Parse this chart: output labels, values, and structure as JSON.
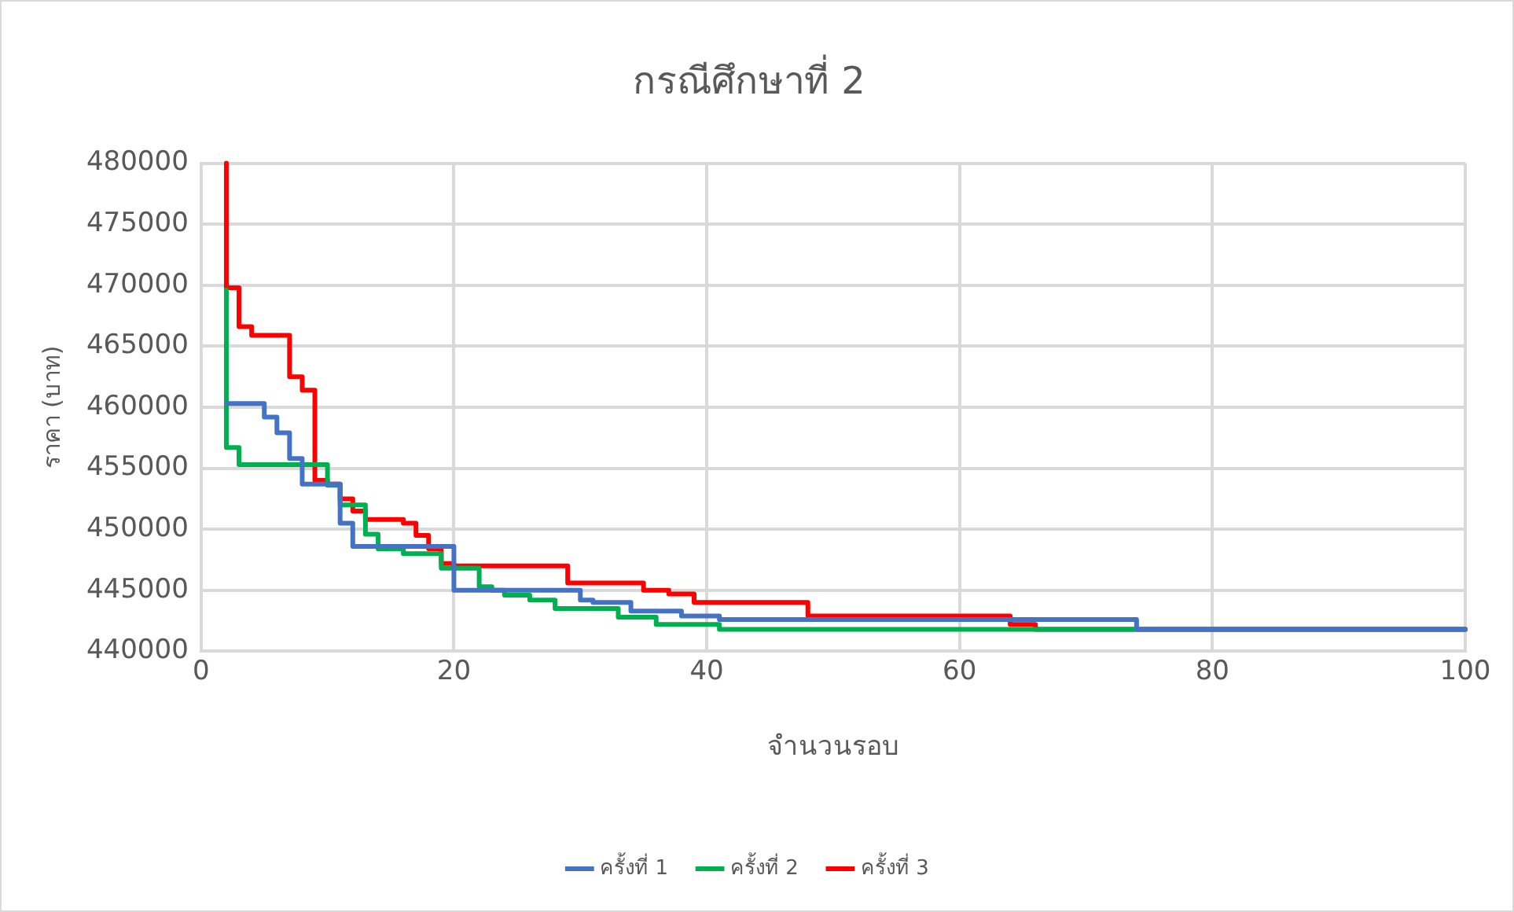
{
  "chart_data": {
    "type": "step",
    "title": "กรณีศึกษาที่ 2",
    "xlabel": "จำนวนรอบ",
    "ylabel": "ราคา (บาท)",
    "xlim": [
      0,
      100
    ],
    "xticks": [
      0,
      20,
      40,
      60,
      80,
      100
    ],
    "ylim": [
      440000,
      480000
    ],
    "yticks": [
      440000,
      445000,
      450000,
      455000,
      460000,
      465000,
      470000,
      475000,
      480000
    ],
    "grid": true,
    "legend": "bottom",
    "marker": "none",
    "line_style": "solid",
    "series": [
      {
        "name": "ครั้งที่ 1",
        "color": "#4472c4",
        "x": [
          2,
          5,
          6,
          7,
          8,
          11,
          12,
          20,
          30,
          31,
          34,
          38,
          41,
          74,
          100
        ],
        "values": [
          460300,
          459200,
          457900,
          455800,
          453700,
          450500,
          448600,
          445000,
          444200,
          444000,
          443300,
          442900,
          442600,
          441800,
          441800
        ]
      },
      {
        "name": "ครั้งที่ 2",
        "color": "#00b050",
        "x": [
          2,
          2,
          3,
          10,
          11,
          13,
          14,
          16,
          19,
          22,
          23,
          24,
          26,
          28,
          33,
          36,
          41,
          100
        ],
        "values": [
          469600,
          456700,
          455300,
          453600,
          452000,
          449600,
          448400,
          448000,
          446800,
          445300,
          445000,
          444600,
          444200,
          443500,
          442800,
          442200,
          441800,
          441800
        ]
      },
      {
        "name": "ครั้งที่ 3",
        "color": "#ff0000",
        "x": [
          2,
          2,
          3,
          4,
          7,
          8,
          9,
          10,
          11,
          12,
          13,
          16,
          17,
          18,
          19,
          20,
          29,
          35,
          37,
          39,
          48,
          64,
          66,
          100
        ],
        "values": [
          480000,
          469800,
          466600,
          465900,
          462500,
          461400,
          454000,
          453700,
          452500,
          451500,
          450800,
          450500,
          449500,
          448400,
          447200,
          447000,
          445600,
          445000,
          444700,
          444000,
          442900,
          442200,
          441800,
          441800
        ]
      }
    ]
  }
}
